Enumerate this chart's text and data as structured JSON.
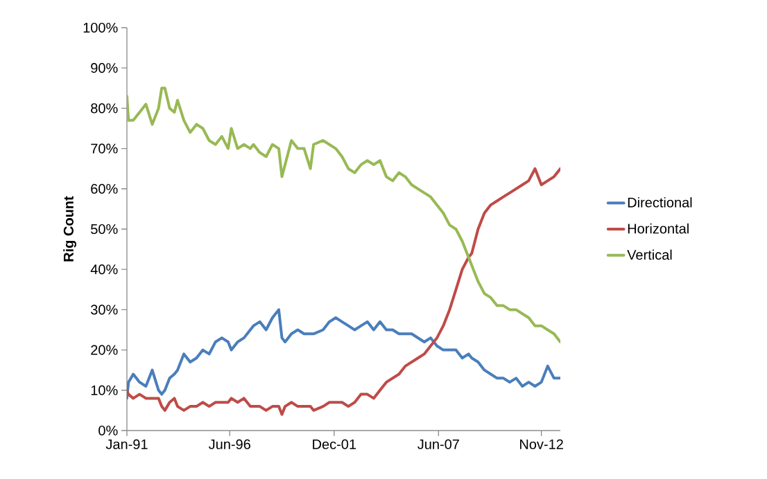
{
  "chart_data": {
    "type": "line",
    "ylabel": "Rig Count",
    "x": [
      "1991-01",
      "1991-02",
      "1991-05",
      "1991-09",
      "1992-01",
      "1992-05",
      "1992-09",
      "1992-11",
      "1993-01",
      "1993-04",
      "1993-07",
      "1993-09",
      "1994-01",
      "1994-05",
      "1994-09",
      "1995-01",
      "1995-05",
      "1995-09",
      "1996-01",
      "1996-05",
      "1996-07",
      "1996-11",
      "1997-03",
      "1997-07",
      "1997-09",
      "1998-01",
      "1998-05",
      "1998-09",
      "1999-01",
      "1999-03",
      "1999-05",
      "1999-09",
      "2000-01",
      "2000-05",
      "2000-09",
      "2000-11",
      "2001-05",
      "2001-09",
      "2002-01",
      "2002-05",
      "2002-09",
      "2003-01",
      "2003-05",
      "2003-09",
      "2004-01",
      "2004-05",
      "2004-09",
      "2005-01",
      "2005-05",
      "2005-09",
      "2006-01",
      "2006-05",
      "2006-09",
      "2007-01",
      "2007-05",
      "2007-09",
      "2008-01",
      "2008-05",
      "2008-09",
      "2009-01",
      "2009-03",
      "2009-07",
      "2009-11",
      "2010-03",
      "2010-07",
      "2010-11",
      "2011-03",
      "2011-07",
      "2011-11",
      "2012-03",
      "2012-07",
      "2012-11",
      "2013-03",
      "2013-07",
      "2013-11"
    ],
    "series": [
      {
        "name": "Directional",
        "color": "#4a7ebb",
        "values": [
          8,
          12,
          14,
          12,
          11,
          15,
          10,
          9,
          10,
          13,
          14,
          15,
          19,
          17,
          18,
          20,
          19,
          22,
          23,
          22,
          20,
          22,
          23,
          25,
          26,
          27,
          25,
          28,
          30,
          23,
          22,
          24,
          25,
          24,
          24,
          24,
          25,
          27,
          28,
          27,
          26,
          25,
          26,
          27,
          25,
          27,
          25,
          25,
          24,
          24,
          24,
          23,
          22,
          23,
          21,
          20,
          20,
          20,
          18,
          19,
          18,
          17,
          15,
          14,
          13,
          13,
          12,
          13,
          11,
          12,
          11,
          12,
          16,
          13,
          13
        ]
      },
      {
        "name": "Horizontal",
        "color": "#be4b48",
        "values": [
          10,
          9,
          8,
          9,
          8,
          8,
          8,
          6,
          5,
          7,
          8,
          6,
          5,
          6,
          6,
          7,
          6,
          7,
          7,
          7,
          8,
          7,
          8,
          6,
          6,
          6,
          5,
          6,
          6,
          4,
          6,
          7,
          6,
          6,
          6,
          5,
          6,
          7,
          7,
          7,
          6,
          7,
          9,
          9,
          8,
          10,
          12,
          13,
          14,
          16,
          17,
          18,
          19,
          21,
          23,
          26,
          30,
          35,
          40,
          43,
          44,
          50,
          54,
          56,
          57,
          58,
          59,
          60,
          61,
          62,
          65,
          61,
          62,
          63,
          65
        ]
      },
      {
        "name": "Vertical",
        "color": "#98b954",
        "values": [
          83,
          77,
          77,
          79,
          81,
          76,
          80,
          85,
          85,
          80,
          79,
          82,
          77,
          74,
          76,
          75,
          72,
          71,
          73,
          70,
          75,
          70,
          71,
          70,
          71,
          69,
          68,
          71,
          70,
          63,
          66,
          72,
          70,
          70,
          65,
          71,
          72,
          71,
          70,
          68,
          65,
          64,
          66,
          67,
          66,
          67,
          63,
          62,
          64,
          63,
          61,
          60,
          59,
          58,
          56,
          54,
          51,
          50,
          47,
          43,
          41,
          37,
          34,
          33,
          31,
          31,
          30,
          30,
          29,
          28,
          26,
          26,
          25,
          24,
          22
        ]
      }
    ],
    "xlim": [
      "1991-01",
      "2013-11"
    ],
    "xticks": [
      {
        "value": "1991-01",
        "label": "Jan-91"
      },
      {
        "value": "1996-06",
        "label": "Jun-96"
      },
      {
        "value": "2001-12",
        "label": "Dec-01"
      },
      {
        "value": "2007-06",
        "label": "Jun-07"
      },
      {
        "value": "2012-11",
        "label": "Nov-12"
      }
    ],
    "ylim": [
      0,
      100
    ],
    "yticks": [
      {
        "value": 0,
        "label": "0%"
      },
      {
        "value": 10,
        "label": "10%"
      },
      {
        "value": 20,
        "label": "20%"
      },
      {
        "value": 30,
        "label": "30%"
      },
      {
        "value": 40,
        "label": "40%"
      },
      {
        "value": 50,
        "label": "50%"
      },
      {
        "value": 60,
        "label": "60%"
      },
      {
        "value": 70,
        "label": "70%"
      },
      {
        "value": 80,
        "label": "80%"
      },
      {
        "value": 90,
        "label": "90%"
      },
      {
        "value": 100,
        "label": "100%"
      }
    ],
    "grid": false,
    "legend": "right",
    "marker": "none",
    "line_style": "solid"
  }
}
